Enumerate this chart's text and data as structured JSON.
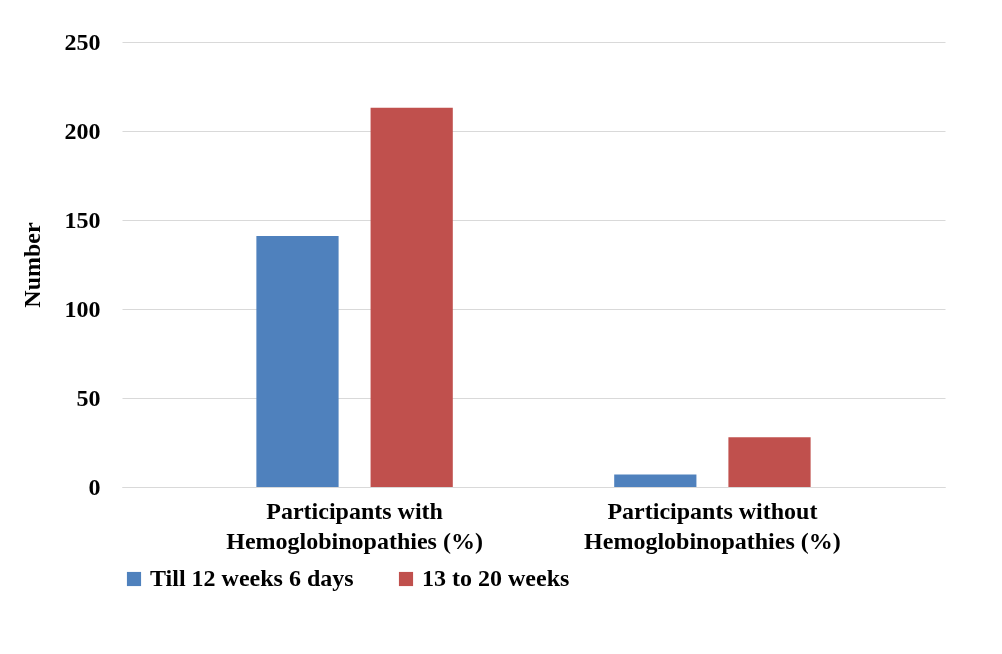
{
  "chart_data": {
    "type": "bar",
    "ylabel": "Number",
    "categories": [
      "Participants with Hemoglobinopathies (%)",
      "Participants without Hemoglobinopathies (%)"
    ],
    "series": [
      {
        "name": "Till 12 weeks 6 days",
        "color": "#4f81bd",
        "values": [
          141,
          7
        ]
      },
      {
        "name": "13 to 20 weeks",
        "color": "#c0504d",
        "values": [
          213,
          28
        ]
      }
    ],
    "ylim": [
      0,
      250
    ],
    "yticks": [
      0,
      50,
      100,
      150,
      200,
      250
    ],
    "grid": "y",
    "legend": "bottom"
  }
}
